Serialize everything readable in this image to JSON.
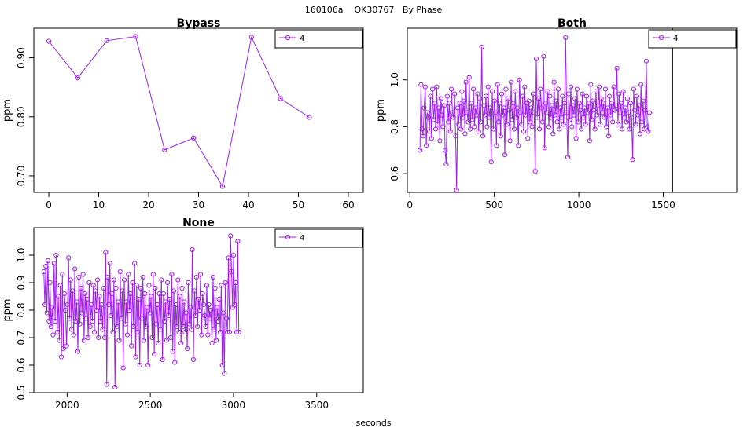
{
  "page_title": "160106a    OK30767   By Phase",
  "shared_xlabel": "seconds",
  "colors": {
    "series": "#A020F0",
    "axis": "#000000",
    "background": "#ffffff"
  },
  "chart_data": [
    {
      "type": "line",
      "title": "Bypass",
      "xlabel": "",
      "ylabel": "ppm",
      "xlim": [
        -3,
        63
      ],
      "ylim": [
        0.672,
        0.95
      ],
      "xticks": [
        0,
        10,
        20,
        30,
        40,
        50,
        60
      ],
      "yticks": [
        0.7,
        0.8,
        0.9
      ],
      "ytick_labels": [
        "0.70",
        "0.80",
        "0.90"
      ],
      "grid": false,
      "legend_position": "top-right",
      "vline": null,
      "series": [
        {
          "name": "4",
          "x": [
            0,
            5.8,
            11.6,
            17.4,
            23.2,
            29,
            34.8,
            40.6,
            46.4,
            52.2
          ],
          "y": [
            0.928,
            0.866,
            0.929,
            0.936,
            0.744,
            0.764,
            0.682,
            0.935,
            0.831,
            0.799
          ]
        }
      ]
    },
    {
      "type": "line",
      "title": "Both",
      "xlabel": "",
      "ylabel": "ppm",
      "xlim": [
        -15,
        1935
      ],
      "ylim": [
        0.52,
        1.22
      ],
      "xticks": [
        0,
        500,
        1000,
        1500
      ],
      "yticks": [
        0.6,
        0.8,
        1.0
      ],
      "ytick_labels": [
        "0.6",
        "0.8",
        "1.0"
      ],
      "grid": false,
      "legend_position": "top-right",
      "vline": 1555,
      "series": [
        {
          "name": "4",
          "x_start": 60,
          "x_step": 6.2,
          "y": [
            0.7,
            0.98,
            0.79,
            0.76,
            0.88,
            0.97,
            0.72,
            0.86,
            0.84,
            0.78,
            0.93,
            0.75,
            0.96,
            0.83,
            0.9,
            0.79,
            0.97,
            0.81,
            0.88,
            0.74,
            0.92,
            0.85,
            0.8,
            0.89,
            0.7,
            0.64,
            0.93,
            0.82,
            0.9,
            0.78,
            0.96,
            0.86,
            0.84,
            0.94,
            0.76,
            0.53,
            0.88,
            0.81,
            0.9,
            0.79,
            0.95,
            0.84,
            0.91,
            0.77,
            0.99,
            0.86,
            0.82,
            1.01,
            0.79,
            0.9,
            0.83,
            0.96,
            0.8,
            0.88,
            0.85,
            0.94,
            0.78,
            0.92,
            0.82,
            1.14,
            0.76,
            0.89,
            0.85,
            0.93,
            0.8,
            0.97,
            0.84,
            0.88,
            0.65,
            0.95,
            0.79,
            0.91,
            0.86,
            0.72,
            0.98,
            0.82,
            0.9,
            0.76,
            0.94,
            0.85,
            0.88,
            0.68,
            0.96,
            0.81,
            0.92,
            0.87,
            0.74,
            0.99,
            0.83,
            0.9,
            0.79,
            0.95,
            0.84,
            0.88,
            0.72,
            1.0,
            0.86,
            0.81,
            0.93,
            0.78,
            0.97,
            0.85,
            0.9,
            0.75,
            0.91,
            0.82,
            0.88,
            0.8,
            0.94,
            0.86,
            0.61,
            1.09,
            0.84,
            0.92,
            0.79,
            0.96,
            0.88,
            0.82,
            1.1,
            0.71,
            0.9,
            0.86,
            0.95,
            0.8,
            0.93,
            0.84,
            0.89,
            0.77,
            0.99,
            0.85,
            0.91,
            0.82,
            0.96,
            0.79,
            0.88,
            0.84,
            0.93,
            0.81,
            0.9,
            1.18,
            0.86,
            0.67,
            0.94,
            0.83,
            0.97,
            0.8,
            0.89,
            0.85,
            0.92,
            0.75,
            0.96,
            0.82,
            0.9,
            0.87,
            0.79,
            0.94,
            0.84,
            0.88,
            0.81,
            0.93,
            0.86,
            0.9,
            0.74,
            0.98,
            0.83,
            0.91,
            0.87,
            0.79,
            0.95,
            0.85,
            0.89,
            0.97,
            0.81,
            0.92,
            0.86,
            0.9,
            0.84,
            0.96,
            0.8,
            0.88,
            0.76,
            0.93,
            0.85,
            0.9,
            0.82,
            0.97,
            0.87,
            0.89,
            1.05,
            0.81,
            0.94,
            0.86,
            0.9,
            0.79,
            0.95,
            0.84,
            0.88,
            0.82,
            0.92,
            0.86,
            0.79,
            0.9,
            0.84,
            0.66,
            0.96,
            0.87,
            0.81,
            0.93,
            0.85,
            0.89,
            0.77,
            0.98,
            0.82,
            0.91,
            0.79,
            0.87,
            1.08,
            0.8,
            0.78,
            0.86
          ]
        }
      ]
    },
    {
      "type": "line",
      "title": "None",
      "xlabel": "",
      "ylabel": "ppm",
      "xlim": [
        1800,
        3780
      ],
      "ylim": [
        0.5,
        1.1
      ],
      "xticks": [
        2000,
        2500,
        3000,
        3500
      ],
      "yticks": [
        0.5,
        0.6,
        0.7,
        0.8,
        0.9,
        1.0
      ],
      "ytick_labels": [
        "0.5",
        "0.6",
        "0.7",
        "0.8",
        "0.9",
        "1.0"
      ],
      "grid": false,
      "legend_position": "top-right",
      "vline": null,
      "series": [
        {
          "name": "4",
          "x_start": 1860,
          "x_step": 6.2,
          "y": [
            0.94,
            0.82,
            0.96,
            0.79,
            0.98,
            0.76,
            0.9,
            0.74,
            0.81,
            0.71,
            0.97,
            0.76,
            1.0,
            0.72,
            0.85,
            0.69,
            0.89,
            0.63,
            0.93,
            0.66,
            0.86,
            0.8,
            0.67,
            0.82,
            0.99,
            0.77,
            0.91,
            0.73,
            0.87,
            0.71,
            0.95,
            0.76,
            0.83,
            0.65,
            0.92,
            0.75,
            0.88,
            0.79,
            0.93,
            0.69,
            0.86,
            0.77,
            0.84,
            0.7,
            0.9,
            0.74,
            0.82,
            0.76,
            0.89,
            0.72,
            0.87,
            0.8,
            0.91,
            0.7,
            0.85,
            0.76,
            0.82,
            0.73,
            0.88,
            0.7,
            1.01,
            0.53,
            0.92,
            0.82,
            0.97,
            0.78,
            0.86,
            0.72,
            0.91,
            0.52,
            0.88,
            0.74,
            0.83,
            0.69,
            0.94,
            0.77,
            0.87,
            0.59,
            0.91,
            0.75,
            0.83,
            0.71,
            0.93,
            0.8,
            0.86,
            0.67,
            0.9,
            0.74,
            0.97,
            0.63,
            0.89,
            0.72,
            0.84,
            0.6,
            0.88,
            0.77,
            0.92,
            0.69,
            0.86,
            0.74,
            0.81,
            0.6,
            0.89,
            0.79,
            0.85,
            0.7,
            0.93,
            0.64,
            0.88,
            0.75,
            0.82,
            0.68,
            0.86,
            0.73,
            0.91,
            0.62,
            0.86,
            0.76,
            0.83,
            0.69,
            0.9,
            0.78,
            0.84,
            0.7,
            0.93,
            0.65,
            0.87,
            0.61,
            0.82,
            0.74,
            0.91,
            0.72,
            0.85,
            0.68,
            0.88,
            0.74,
            0.83,
            0.72,
            0.79,
            0.66,
            0.9,
            0.75,
            0.81,
            0.73,
            1.02,
            0.62,
            0.87,
            0.78,
            0.92,
            0.74,
            0.84,
            0.8,
            0.93,
            0.71,
            0.86,
            0.82,
            0.78,
            0.74,
            0.89,
            0.71,
            0.82,
            0.77,
            0.8,
            0.68,
            0.92,
            0.73,
            0.88,
            0.69,
            0.81,
            0.76,
            0.84,
            0.72,
            0.89,
            0.6,
            0.79,
            0.57,
            0.9,
            0.77,
            0.72,
            0.99,
            0.72,
            1.07,
            0.94,
            0.81,
            1.0,
            0.82,
            0.9,
            0.72,
            1.05,
            0.72
          ]
        }
      ]
    }
  ]
}
